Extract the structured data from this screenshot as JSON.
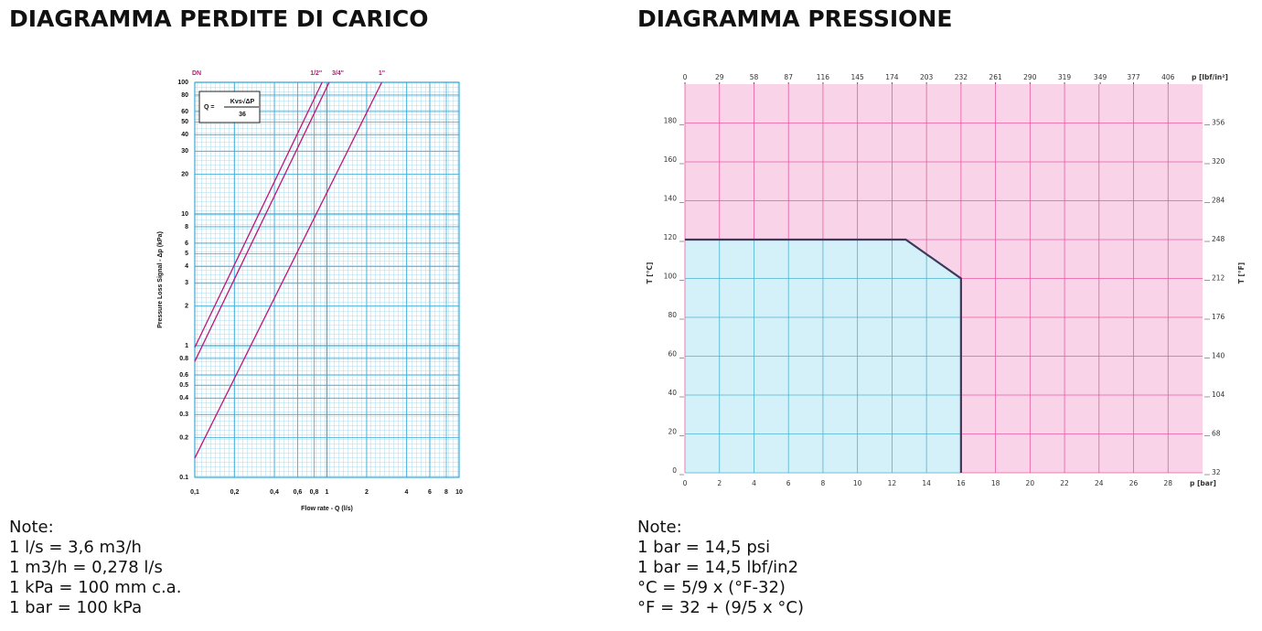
{
  "chart_data": [
    {
      "type": "line",
      "title": "DIAGRAMMA PERDITE DI CARICO",
      "xlabel": "Flow rate - Q (l/s)",
      "ylabel": "Pressure Loss Signal - Δp (kPa)",
      "log_x": true,
      "log_y": true,
      "grid": true,
      "grid_color": "#3aa9d8",
      "xlim": [
        0.1,
        10
      ],
      "ylim": [
        0.1,
        100
      ],
      "xticks": [
        {
          "value": 0.1,
          "label": "0,1"
        },
        {
          "value": 0.2,
          "label": "0,2"
        },
        {
          "value": 0.4,
          "label": "0,4"
        },
        {
          "value": 0.6,
          "label": "0,6"
        },
        {
          "value": 0.8,
          "label": "0,8"
        },
        1,
        2,
        4,
        6,
        8,
        10
      ],
      "yticks": [
        0.1,
        0.2,
        0.3,
        0.4,
        0.5,
        0.6,
        0.8,
        1,
        2,
        3,
        4,
        5,
        6,
        8,
        10,
        20,
        30,
        40,
        50,
        60,
        80,
        100
      ],
      "legend_title": "DN",
      "formula": {
        "lhs": "Q =",
        "numerator": "Kvs√ΔP",
        "denominator": "36"
      },
      "series": [
        {
          "name": "1/2\"",
          "color": "#c0147a",
          "x": [
            0.1,
            0.92
          ],
          "values": [
            0.97,
            100
          ]
        },
        {
          "name": "3/4\"",
          "color": "#c0147a",
          "x": [
            0.1,
            1.04
          ],
          "values": [
            0.76,
            100
          ]
        },
        {
          "name": "1\"",
          "color": "#c0147a",
          "x": [
            0.1,
            2.6
          ],
          "values": [
            0.14,
            100
          ]
        }
      ],
      "notes": [
        "Note:",
        "1 l/s = 3,6 m3/h",
        "1 m3/h = 0,278 l/s",
        "1 kPa = 100 mm c.a.",
        "1 bar = 100 kPa"
      ]
    },
    {
      "type": "area",
      "title": "DIAGRAMMA PRESSIONE",
      "xlabel": "p [bar]",
      "x2label": "p [lbf/in²]",
      "ylabel": "T [°C]",
      "y2label": "T [°F]",
      "grid": true,
      "background": "#f9d4e8",
      "grid_color": "#e85aa3",
      "xlim": [
        0,
        30
      ],
      "xticks": [
        0,
        2,
        4,
        6,
        8,
        10,
        12,
        14,
        16,
        18,
        20,
        22,
        24,
        26,
        28
      ],
      "x2lim": [
        0,
        435
      ],
      "x2ticks": [
        0,
        29,
        58,
        87,
        116,
        145,
        174,
        203,
        232,
        261,
        290,
        319,
        349,
        377,
        406
      ],
      "ylim": [
        0,
        200
      ],
      "yticks": [
        0,
        20,
        40,
        60,
        80,
        100,
        120,
        140,
        160,
        180
      ],
      "y2lim": [
        32,
        392
      ],
      "y2ticks": [
        32,
        68,
        104,
        140,
        176,
        212,
        248,
        284,
        320,
        356
      ],
      "series": [
        {
          "color": "#3a3a5c",
          "fill": "#d4f1f9",
          "grid_color": "#4fb3cf",
          "x": [
            0,
            12.8,
            16,
            16
          ],
          "values": [
            120,
            120,
            100,
            0
          ]
        }
      ],
      "notes": [
        "Note:",
        "1 bar = 14,5 psi",
        "1 bar = 14,5 lbf/in2",
        "°C = 5/9 x (°F-32)",
        "°F = 32 + (9/5 x °C)"
      ]
    }
  ]
}
